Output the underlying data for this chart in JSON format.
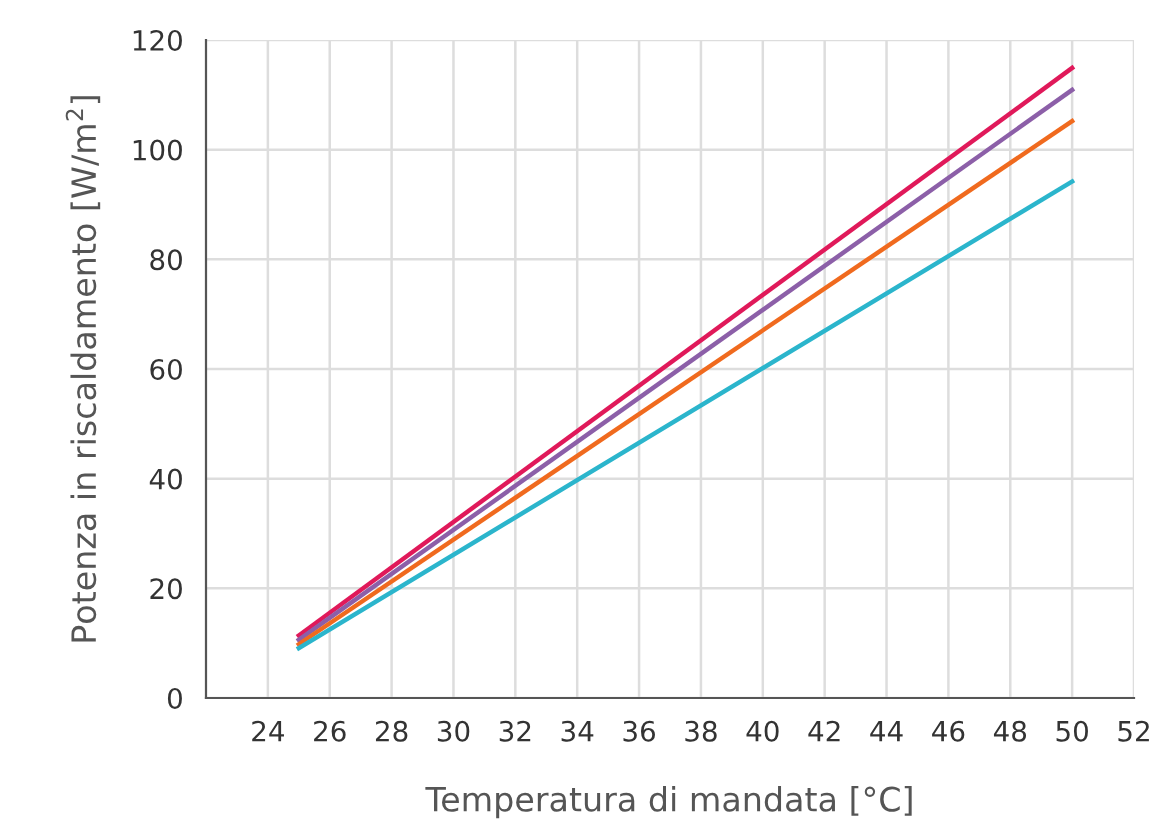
{
  "chart_data": {
    "type": "line",
    "xlabel": "Temperatura di mandata [°C]",
    "ylabel": "Potenza in riscaldamento [W/m$^{2}$]",
    "x": [
      25,
      50
    ],
    "series": [
      {
        "color": "#e0195a",
        "values": [
          11.4,
          114.9
        ]
      },
      {
        "color": "#8c5fa8",
        "values": [
          10.6,
          110.9
        ]
      },
      {
        "color": "#f06a1e",
        "values": [
          9.8,
          105.2
        ]
      },
      {
        "color": "#2bb5cc",
        "values": [
          9.1,
          94.2
        ]
      }
    ],
    "xlim": [
      22,
      52
    ],
    "xticks": [
      24,
      26,
      28,
      30,
      32,
      34,
      36,
      38,
      40,
      42,
      44,
      46,
      48,
      50,
      52
    ],
    "ylim": [
      0,
      120
    ],
    "yticks": [
      0,
      20,
      40,
      60,
      80,
      100,
      120
    ],
    "grid": true,
    "marker": "none",
    "line_style": "solid",
    "legend": false
  }
}
